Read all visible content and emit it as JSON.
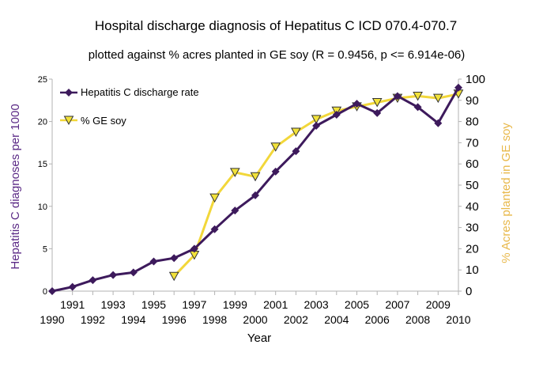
{
  "chart_data": {
    "type": "line",
    "title": "Hospital discharge diagnosis of Hepatitus C  ICD 070.4-070.7",
    "subtitle": "plotted against %  acres planted in GE soy (R = 0.9456, p <= 6.914e-06)",
    "xlabel": "Year",
    "ylabel_left": "Hepatitis C diagnoses per 1000",
    "ylabel_right": "% Acres planted in GE soy",
    "xlim": [
      1990,
      2010
    ],
    "ylim_left": [
      0,
      25
    ],
    "ylim_right": [
      0,
      100
    ],
    "x_ticks_upper": [
      "1991",
      "1993",
      "1995",
      "1997",
      "1999",
      "2001",
      "2003",
      "2005",
      "2007",
      "2009"
    ],
    "x_ticks_lower": [
      "1990",
      "1992",
      "1994",
      "1996",
      "1998",
      "2000",
      "2002",
      "2004",
      "2006",
      "2008",
      "2010"
    ],
    "y_ticks_left": [
      "0",
      "5",
      "10",
      "15",
      "20",
      "25"
    ],
    "y_ticks_right": [
      "0",
      "10",
      "20",
      "30",
      "40",
      "50",
      "60",
      "70",
      "80",
      "90",
      "100"
    ],
    "legend_position": "top-left",
    "grid": false,
    "series": [
      {
        "name": "Hepatitis C discharge rate",
        "axis": "left",
        "color": "#3d1a5c",
        "marker": "diamond",
        "x": [
          1990,
          1991,
          1992,
          1993,
          1994,
          1995,
          1996,
          1997,
          1998,
          1999,
          2000,
          2001,
          2002,
          2003,
          2004,
          2005,
          2006,
          2007,
          2008,
          2009,
          2010
        ],
        "values": [
          0,
          0.5,
          1.3,
          1.9,
          2.2,
          3.5,
          3.9,
          5.0,
          7.3,
          9.5,
          11.3,
          14.1,
          16.5,
          19.5,
          20.8,
          22.1,
          21.0,
          23.0,
          21.7,
          19.8,
          24.0
        ]
      },
      {
        "name": "% GE soy",
        "axis": "right",
        "color": "#f2d73a",
        "marker_fill": "#f2e23a",
        "marker": "triangle-down",
        "x": [
          1996,
          1997,
          1998,
          1999,
          2000,
          2001,
          2002,
          2003,
          2004,
          2005,
          2006,
          2007,
          2008,
          2009,
          2010
        ],
        "values": [
          7,
          17,
          44,
          56,
          54,
          68,
          75,
          81,
          85,
          87,
          89,
          91,
          92,
          91,
          93
        ]
      }
    ]
  }
}
